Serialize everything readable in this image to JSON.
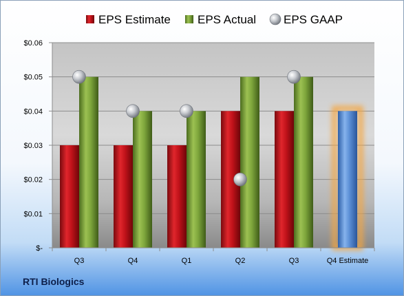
{
  "company": "RTI Biologics",
  "chart_data": {
    "type": "bar",
    "categories": [
      "Q3",
      "Q4",
      "Q1",
      "Q2",
      "Q3",
      "Q4 Estimate"
    ],
    "series": [
      {
        "name": "EPS Estimate",
        "values": [
          0.03,
          0.03,
          0.03,
          0.04,
          0.04,
          null
        ],
        "color": "#c0121a"
      },
      {
        "name": "EPS Actual",
        "values": [
          0.05,
          0.04,
          0.04,
          0.05,
          0.05,
          null
        ],
        "color": "#7ea63c"
      },
      {
        "name": "EPS GAAP",
        "values": [
          0.05,
          0.04,
          0.04,
          0.02,
          0.05,
          null
        ],
        "color": "#b7bcc4",
        "marker": "sphere"
      }
    ],
    "estimate_bar": {
      "category": "Q4 Estimate",
      "value": 0.04,
      "color": "#5b8fd6",
      "glow": "#f5a640"
    },
    "yticks": [
      "$0.06",
      "$0.05",
      "$0.04",
      "$0.03",
      "$0.02",
      "$0.01",
      "$-"
    ],
    "ytick_values": [
      0.06,
      0.05,
      0.04,
      0.03,
      0.02,
      0.01,
      0
    ],
    "ylim": [
      0,
      0.06
    ],
    "legend_position": "top",
    "grid": true
  }
}
